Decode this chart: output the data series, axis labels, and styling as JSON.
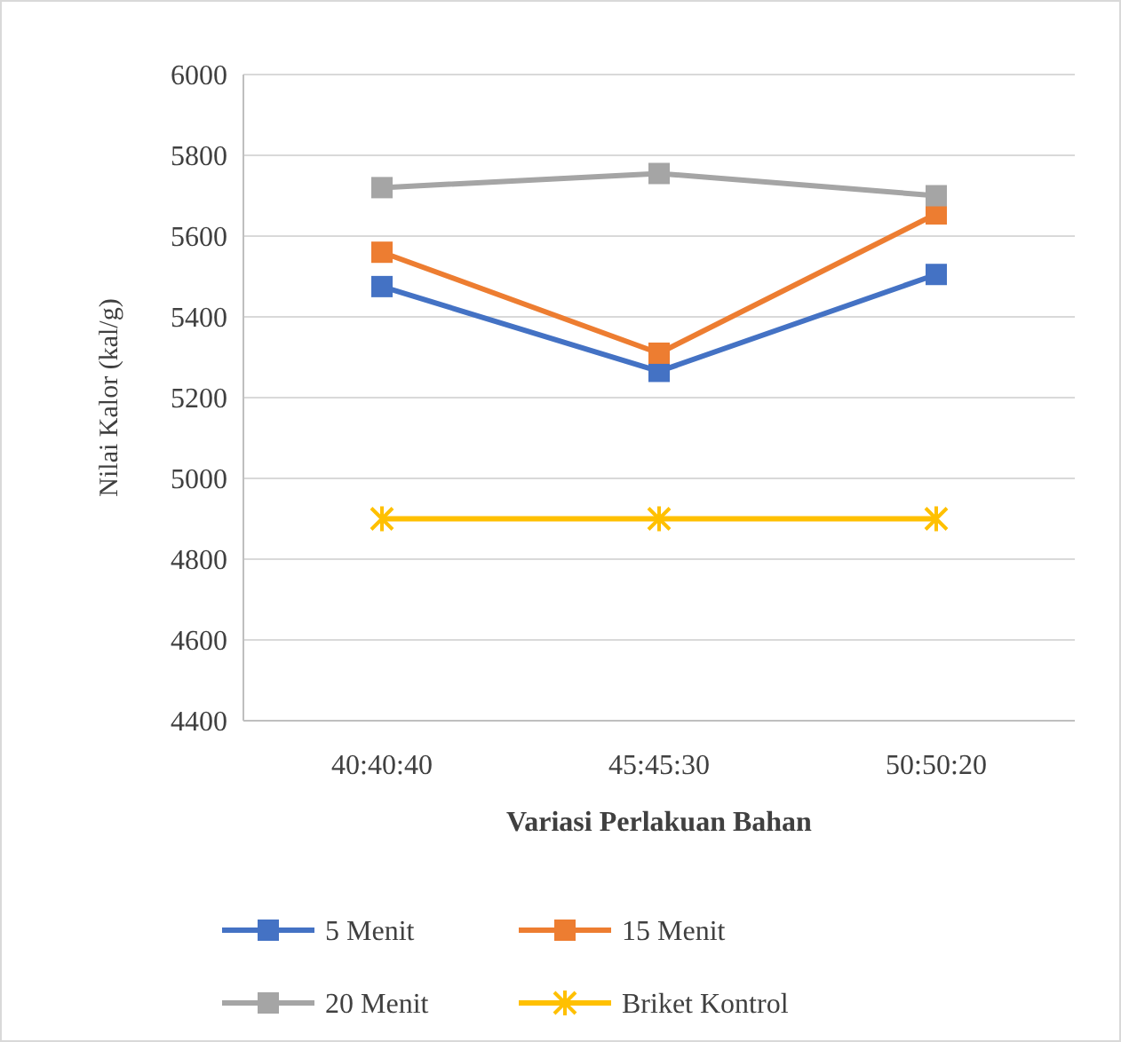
{
  "chart_data": {
    "type": "line",
    "xlabel": "Variasi Perlakuan Bahan",
    "ylabel": "Nilai Kalor (kal/g)",
    "categories": [
      "40:40:40",
      "45:45:30",
      "50:50:20"
    ],
    "series": [
      {
        "name": "5 Menit",
        "color": "#4472c4",
        "marker": "square",
        "values": [
          5475,
          5265,
          5505
        ]
      },
      {
        "name": "15 Menit",
        "color": "#ed7d31",
        "marker": "square",
        "values": [
          5560,
          5310,
          5655
        ]
      },
      {
        "name": "20 Menit",
        "color": "#a5a5a5",
        "marker": "square",
        "values": [
          5720,
          5755,
          5700
        ]
      },
      {
        "name": "Briket Kontrol",
        "color": "#ffc000",
        "marker": "cross",
        "values": [
          4900,
          4900,
          4900
        ]
      }
    ],
    "ylim": [
      4400,
      6000
    ],
    "yticks": [
      4400,
      4600,
      4800,
      5000,
      5200,
      5400,
      5600,
      5800,
      6000
    ],
    "grid": "y",
    "legend": "bottom",
    "line_style": "solid"
  }
}
